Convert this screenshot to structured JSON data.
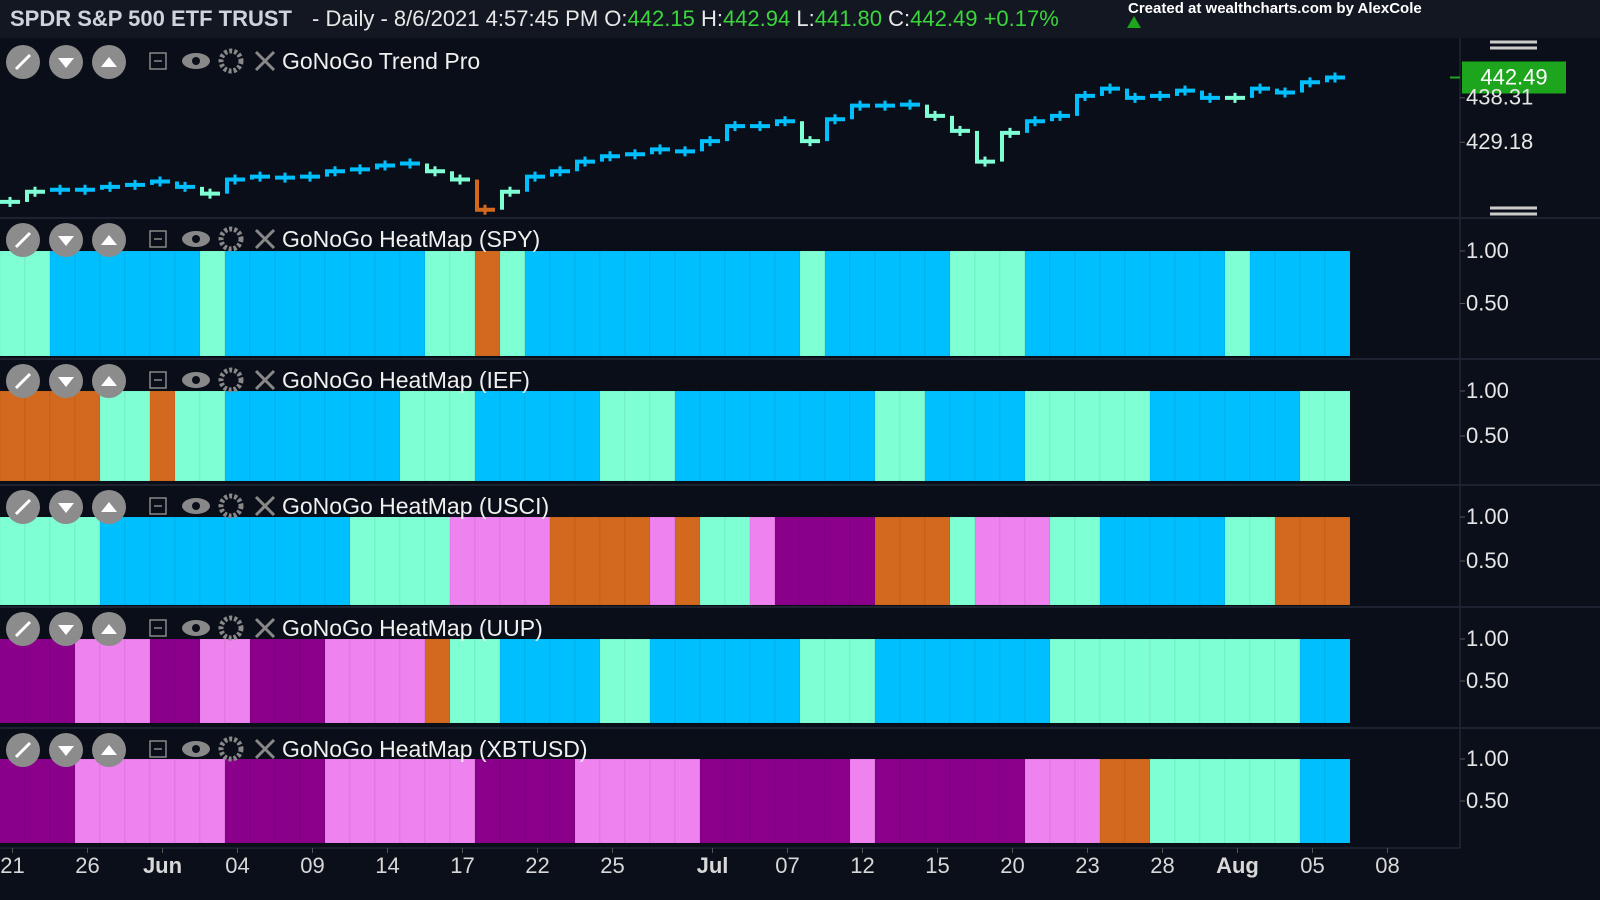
{
  "header": {
    "symbol": "SPDR S&P 500 ETF TRUST",
    "info": "- Daily - 8/6/2021 4:57:45 PM",
    "open_label": "O:",
    "open": "442.15",
    "high_label": "H:",
    "high": "442.94",
    "low_label": "L:",
    "low": "441.80",
    "close_label": "C:",
    "close": "442.49",
    "change": "+0.17%",
    "credit": "Created at wealthcharts.com by AlexCole"
  },
  "chart_data": [
    {
      "type": "step",
      "title": "GoNoGo Trend Pro",
      "categories": [
        "21",
        null,
        null,
        "26",
        null,
        null,
        "Jun",
        null,
        null,
        "04",
        null,
        null,
        "09",
        null,
        null,
        "14",
        null,
        null,
        "17",
        null,
        null,
        "22",
        null,
        null,
        "25",
        null,
        null,
        null,
        "Jul",
        null,
        null,
        "07",
        null,
        null,
        "12",
        null,
        null,
        "15",
        null,
        null,
        "20",
        null,
        null,
        "23",
        null,
        null,
        "28",
        null,
        null,
        "Aug",
        null,
        null,
        "05",
        null,
        null,
        "08"
      ],
      "values": [
        416.9,
        419.0,
        419.4,
        419.4,
        420.0,
        420.4,
        421.1,
        420.0,
        418.6,
        421.5,
        422.1,
        421.9,
        422.1,
        423.2,
        423.6,
        424.4,
        424.8,
        423.2,
        421.5,
        415.3,
        419.0,
        422.1,
        423.2,
        425.2,
        426.3,
        426.7,
        427.7,
        427.3,
        429.4,
        432.5,
        432.5,
        433.5,
        429.4,
        433.9,
        436.7,
        436.7,
        436.9,
        434.6,
        431.5,
        425.2,
        431.1,
        433.5,
        434.6,
        438.7,
        440.2,
        438.3,
        438.7,
        439.8,
        438.3,
        438.3,
        440.2,
        439.4,
        441.5,
        442.49,
        null,
        null
      ],
      "colors": [
        "#7fffd4",
        "#7fffd4",
        "#00bfff",
        "#00bfff",
        "#00bfff",
        "#00bfff",
        "#00bfff",
        "#00bfff",
        "#7fffd4",
        "#00bfff",
        "#00bfff",
        "#00bfff",
        "#00bfff",
        "#00bfff",
        "#00bfff",
        "#00bfff",
        "#00bfff",
        "#7fffd4",
        "#7fffd4",
        "#d2691e",
        "#7fffd4",
        "#00bfff",
        "#00bfff",
        "#00bfff",
        "#00bfff",
        "#00bfff",
        "#00bfff",
        "#00bfff",
        "#00bfff",
        "#00bfff",
        "#00bfff",
        "#00bfff",
        "#7fffd4",
        "#00bfff",
        "#00bfff",
        "#00bfff",
        "#00bfff",
        "#7fffd4",
        "#7fffd4",
        "#7fffd4",
        "#7fffd4",
        "#00bfff",
        "#00bfff",
        "#00bfff",
        "#00bfff",
        "#00bfff",
        "#00bfff",
        "#00bfff",
        "#00bfff",
        "#7fffd4",
        "#00bfff",
        "#00bfff",
        "#00bfff",
        "#00bfff",
        null,
        null
      ],
      "ylim": [
        413.8,
        450.2
      ],
      "yticks": [
        429.18,
        438.31
      ],
      "last_price": 442.49,
      "last_price_color": "#1ea51e"
    },
    {
      "type": "heatmap",
      "title": "GoNoGo HeatMap (SPY)",
      "values": [
        1,
        1,
        1,
        1,
        1,
        1,
        1,
        1,
        1,
        1,
        1,
        1,
        1,
        1,
        1,
        1,
        1,
        1,
        1,
        1,
        1,
        1,
        1,
        1,
        1,
        1,
        1,
        1,
        1,
        1,
        1,
        1,
        1,
        1,
        1,
        1,
        1,
        1,
        1,
        1,
        1,
        1,
        1,
        1,
        1,
        1,
        1,
        1,
        1,
        1,
        1,
        1,
        1,
        1,
        null,
        null
      ],
      "colors": [
        "#7fffd4",
        "#7fffd4",
        "#00bfff",
        "#00bfff",
        "#00bfff",
        "#00bfff",
        "#00bfff",
        "#00bfff",
        "#7fffd4",
        "#00bfff",
        "#00bfff",
        "#00bfff",
        "#00bfff",
        "#00bfff",
        "#00bfff",
        "#00bfff",
        "#00bfff",
        "#7fffd4",
        "#7fffd4",
        "#d2691e",
        "#7fffd4",
        "#00bfff",
        "#00bfff",
        "#00bfff",
        "#00bfff",
        "#00bfff",
        "#00bfff",
        "#00bfff",
        "#00bfff",
        "#00bfff",
        "#00bfff",
        "#00bfff",
        "#7fffd4",
        "#00bfff",
        "#00bfff",
        "#00bfff",
        "#00bfff",
        "#00bfff",
        "#7fffd4",
        "#7fffd4",
        "#7fffd4",
        "#00bfff",
        "#00bfff",
        "#00bfff",
        "#00bfff",
        "#00bfff",
        "#00bfff",
        "#00bfff",
        "#00bfff",
        "#7fffd4",
        "#00bfff",
        "#00bfff",
        "#00bfff",
        "#00bfff",
        null,
        null
      ],
      "ylim": [
        0,
        1
      ],
      "yticks": [
        {
          "value": 0.5,
          "label": "0.50"
        },
        {
          "value": 1,
          "label": "1.00"
        }
      ]
    },
    {
      "type": "heatmap",
      "title": "GoNoGo HeatMap (IEF)",
      "values": [
        1,
        1,
        1,
        1,
        1,
        1,
        1,
        1,
        1,
        1,
        1,
        1,
        1,
        1,
        1,
        1,
        1,
        1,
        1,
        1,
        1,
        1,
        1,
        1,
        1,
        1,
        1,
        1,
        1,
        1,
        1,
        1,
        1,
        1,
        1,
        1,
        1,
        1,
        1,
        1,
        1,
        1,
        1,
        1,
        1,
        1,
        1,
        1,
        1,
        1,
        1,
        1,
        1,
        1,
        null,
        null
      ],
      "colors": [
        "#d2691e",
        "#d2691e",
        "#d2691e",
        "#d2691e",
        "#7fffd4",
        "#7fffd4",
        "#d2691e",
        "#7fffd4",
        "#7fffd4",
        "#00bfff",
        "#00bfff",
        "#00bfff",
        "#00bfff",
        "#00bfff",
        "#00bfff",
        "#00bfff",
        "#7fffd4",
        "#7fffd4",
        "#7fffd4",
        "#00bfff",
        "#00bfff",
        "#00bfff",
        "#00bfff",
        "#00bfff",
        "#7fffd4",
        "#7fffd4",
        "#7fffd4",
        "#00bfff",
        "#00bfff",
        "#00bfff",
        "#00bfff",
        "#00bfff",
        "#00bfff",
        "#00bfff",
        "#00bfff",
        "#7fffd4",
        "#7fffd4",
        "#00bfff",
        "#00bfff",
        "#00bfff",
        "#00bfff",
        "#7fffd4",
        "#7fffd4",
        "#7fffd4",
        "#7fffd4",
        "#7fffd4",
        "#00bfff",
        "#00bfff",
        "#00bfff",
        "#00bfff",
        "#00bfff",
        "#00bfff",
        "#7fffd4",
        "#7fffd4",
        null,
        null
      ],
      "ylim": [
        0,
        1
      ],
      "yticks": [
        {
          "value": 0.5,
          "label": "0.50"
        },
        {
          "value": 1,
          "label": "1.00"
        }
      ]
    },
    {
      "type": "heatmap",
      "title": "GoNoGo HeatMap (USCI)",
      "values": [
        1,
        1,
        1,
        1,
        1,
        1,
        1,
        1,
        1,
        1,
        1,
        1,
        1,
        1,
        1,
        1,
        1,
        1,
        1,
        1,
        1,
        1,
        1,
        1,
        1,
        1,
        1,
        1,
        1,
        1,
        1,
        1,
        1,
        1,
        1,
        1,
        1,
        1,
        1,
        1,
        1,
        1,
        1,
        1,
        1,
        1,
        1,
        1,
        1,
        1,
        1,
        1,
        1,
        1,
        null,
        null
      ],
      "colors": [
        "#7fffd4",
        "#7fffd4",
        "#7fffd4",
        "#7fffd4",
        "#00bfff",
        "#00bfff",
        "#00bfff",
        "#00bfff",
        "#00bfff",
        "#00bfff",
        "#00bfff",
        "#00bfff",
        "#00bfff",
        "#00bfff",
        "#7fffd4",
        "#7fffd4",
        "#7fffd4",
        "#7fffd4",
        "#ee82ee",
        "#ee82ee",
        "#ee82ee",
        "#ee82ee",
        "#d2691e",
        "#d2691e",
        "#d2691e",
        "#d2691e",
        "#ee82ee",
        "#d2691e",
        "#7fffd4",
        "#7fffd4",
        "#ee82ee",
        "#8b008b",
        "#8b008b",
        "#8b008b",
        "#8b008b",
        "#d2691e",
        "#d2691e",
        "#d2691e",
        "#7fffd4",
        "#ee82ee",
        "#ee82ee",
        "#ee82ee",
        "#7fffd4",
        "#7fffd4",
        "#00bfff",
        "#00bfff",
        "#00bfff",
        "#00bfff",
        "#00bfff",
        "#7fffd4",
        "#7fffd4",
        "#d2691e",
        "#d2691e",
        "#d2691e",
        null,
        null
      ],
      "ylim": [
        0,
        1
      ],
      "yticks": [
        {
          "value": 0.5,
          "label": "0.50"
        },
        {
          "value": 1,
          "label": "1.00"
        }
      ]
    },
    {
      "type": "heatmap",
      "title": "GoNoGo HeatMap (UUP)",
      "values": [
        1,
        1,
        1,
        1,
        1,
        1,
        1,
        1,
        1,
        1,
        1,
        1,
        1,
        1,
        1,
        1,
        1,
        1,
        1,
        1,
        1,
        1,
        1,
        1,
        1,
        1,
        1,
        1,
        1,
        1,
        1,
        1,
        1,
        1,
        1,
        1,
        1,
        1,
        1,
        1,
        1,
        1,
        1,
        1,
        1,
        1,
        1,
        1,
        1,
        1,
        1,
        1,
        1,
        1,
        null,
        null
      ],
      "colors": [
        "#8b008b",
        "#8b008b",
        "#8b008b",
        "#ee82ee",
        "#ee82ee",
        "#ee82ee",
        "#8b008b",
        "#8b008b",
        "#ee82ee",
        "#ee82ee",
        "#8b008b",
        "#8b008b",
        "#8b008b",
        "#ee82ee",
        "#ee82ee",
        "#ee82ee",
        "#ee82ee",
        "#d2691e",
        "#7fffd4",
        "#7fffd4",
        "#00bfff",
        "#00bfff",
        "#00bfff",
        "#00bfff",
        "#7fffd4",
        "#7fffd4",
        "#00bfff",
        "#00bfff",
        "#00bfff",
        "#00bfff",
        "#00bfff",
        "#00bfff",
        "#7fffd4",
        "#7fffd4",
        "#7fffd4",
        "#00bfff",
        "#00bfff",
        "#00bfff",
        "#00bfff",
        "#00bfff",
        "#00bfff",
        "#00bfff",
        "#7fffd4",
        "#7fffd4",
        "#7fffd4",
        "#7fffd4",
        "#7fffd4",
        "#7fffd4",
        "#7fffd4",
        "#7fffd4",
        "#7fffd4",
        "#7fffd4",
        "#00bfff",
        "#00bfff",
        null,
        null
      ],
      "ylim": [
        0,
        1
      ],
      "yticks": [
        {
          "value": 0.5,
          "label": "0.50"
        },
        {
          "value": 1,
          "label": "1.00"
        }
      ]
    },
    {
      "type": "heatmap",
      "title": "GoNoGo HeatMap (XBTUSD)",
      "values": [
        1,
        1,
        1,
        1,
        1,
        1,
        1,
        1,
        1,
        1,
        1,
        1,
        1,
        1,
        1,
        1,
        1,
        1,
        1,
        1,
        1,
        1,
        1,
        1,
        1,
        1,
        1,
        1,
        1,
        1,
        1,
        1,
        1,
        1,
        1,
        1,
        1,
        1,
        1,
        1,
        1,
        1,
        1,
        1,
        1,
        1,
        1,
        1,
        1,
        1,
        1,
        1,
        1,
        1,
        null,
        null
      ],
      "colors": [
        "#8b008b",
        "#8b008b",
        "#8b008b",
        "#ee82ee",
        "#ee82ee",
        "#ee82ee",
        "#ee82ee",
        "#ee82ee",
        "#ee82ee",
        "#8b008b",
        "#8b008b",
        "#8b008b",
        "#8b008b",
        "#ee82ee",
        "#ee82ee",
        "#ee82ee",
        "#ee82ee",
        "#ee82ee",
        "#ee82ee",
        "#8b008b",
        "#8b008b",
        "#8b008b",
        "#8b008b",
        "#ee82ee",
        "#ee82ee",
        "#ee82ee",
        "#ee82ee",
        "#ee82ee",
        "#8b008b",
        "#8b008b",
        "#8b008b",
        "#8b008b",
        "#8b008b",
        "#8b008b",
        "#ee82ee",
        "#8b008b",
        "#8b008b",
        "#8b008b",
        "#8b008b",
        "#8b008b",
        "#8b008b",
        "#ee82ee",
        "#ee82ee",
        "#ee82ee",
        "#d2691e",
        "#d2691e",
        "#7fffd4",
        "#7fffd4",
        "#7fffd4",
        "#7fffd4",
        "#7fffd4",
        "#7fffd4",
        "#00bfff",
        "#00bfff",
        null,
        null
      ],
      "ylim": [
        0,
        1
      ],
      "yticks": [
        {
          "value": 0.5,
          "label": "0.50"
        },
        {
          "value": 1,
          "label": "1.00"
        }
      ]
    }
  ]
}
